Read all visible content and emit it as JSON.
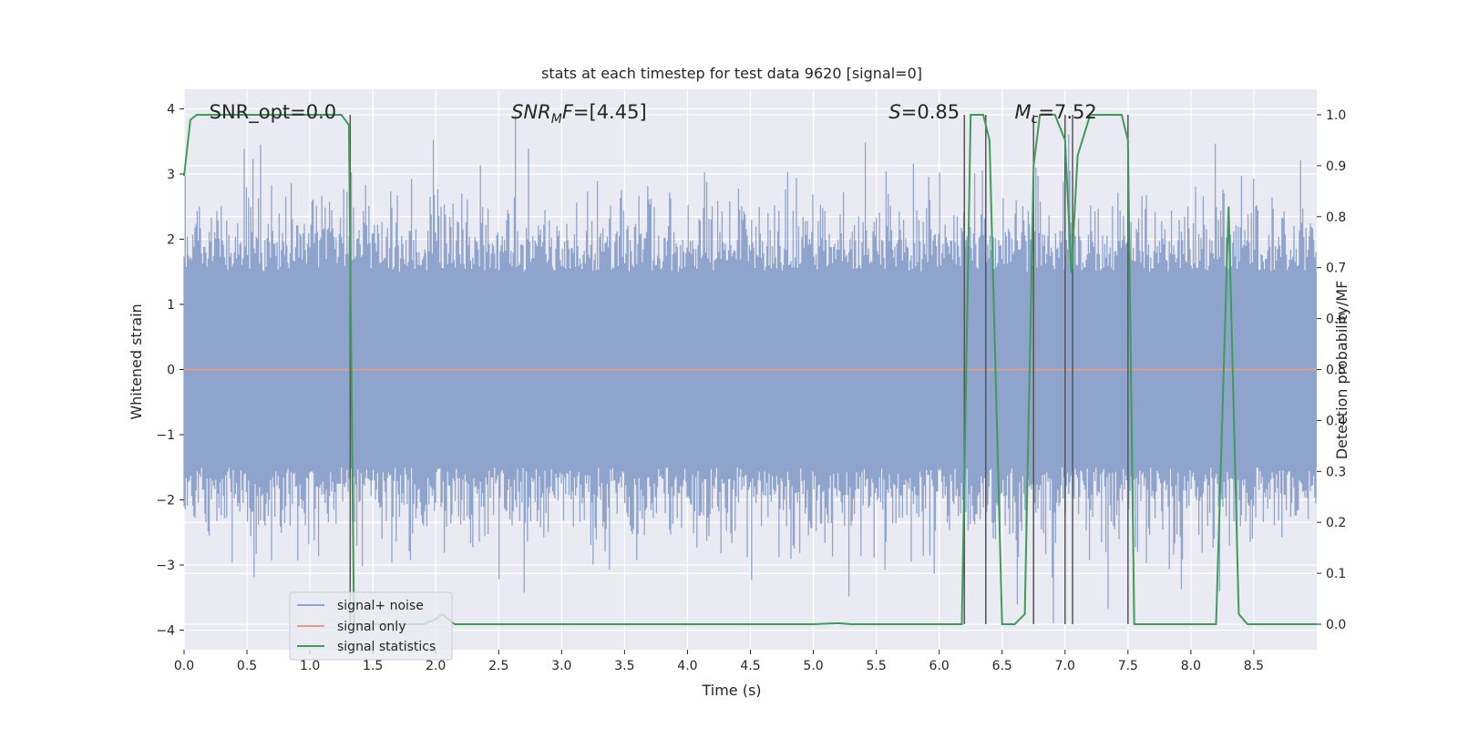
{
  "chart_data": {
    "type": "line",
    "title": "stats at each timestep for test data 9620 [signal=0]",
    "xlabel": "Time (s)",
    "ylabel": "Whitened strain",
    "ylabel_right": "Detection probability/MF",
    "xlim": [
      0,
      9.0
    ],
    "ylim": [
      -4.3,
      4.3
    ],
    "ylim_right": [
      -0.05,
      1.05
    ],
    "x_ticks": [
      0.0,
      0.5,
      1.0,
      1.5,
      2.0,
      2.5,
      3.0,
      3.5,
      4.0,
      4.5,
      5.0,
      5.5,
      6.0,
      6.5,
      7.0,
      7.5,
      8.0,
      8.5
    ],
    "x_tick_labels": [
      "0.0",
      "0.5",
      "1.0",
      "1.5",
      "2.0",
      "2.5",
      "3.0",
      "3.5",
      "4.0",
      "4.5",
      "5.0",
      "5.5",
      "6.0",
      "6.5",
      "7.0",
      "7.5",
      "8.0",
      "8.5"
    ],
    "y_ticks": [
      -4,
      -3,
      -2,
      -1,
      0,
      1,
      2,
      3,
      4
    ],
    "y_tick_labels": [
      "−4",
      "−3",
      "−2",
      "−1",
      "0",
      "1",
      "2",
      "3",
      "4"
    ],
    "y_ticks_right": [
      0.0,
      0.1,
      0.2,
      0.3,
      0.4,
      0.5,
      0.6,
      0.7,
      0.8,
      0.9,
      1.0
    ],
    "y_tick_labels_right": [
      "0.0",
      "0.1",
      "0.2",
      "0.3",
      "0.4",
      "0.5",
      "0.6",
      "0.7",
      "0.8",
      "0.9",
      "1.0"
    ],
    "grid": true,
    "legend_position": "lower-left",
    "annotations": [
      {
        "text": "SNR_opt=0.0",
        "x": 0.2,
        "y": 3.95
      },
      {
        "text_parts": [
          {
            "t": "SNR",
            "italic": true
          },
          {
            "t": "M",
            "italic": true,
            "sub": true
          },
          {
            "t": "F",
            "italic": true
          },
          {
            "t": "=[4.45]",
            "italic": false
          }
        ],
        "x": 2.6,
        "y": 3.95
      },
      {
        "text_parts": [
          {
            "t": "S",
            "italic": true
          },
          {
            "t": "=0.85",
            "italic": false
          }
        ],
        "x": 5.6,
        "y": 3.95
      },
      {
        "text_parts": [
          {
            "t": "M",
            "italic": true
          },
          {
            "t": "c",
            "italic": true,
            "sub": true
          },
          {
            "t": "=7.52",
            "italic": false
          }
        ],
        "x": 6.6,
        "y": 3.95
      }
    ],
    "series": [
      {
        "name": "signal+ noise",
        "color": "#8fa4cc",
        "kind": "noise",
        "x_range": [
          0,
          9.0
        ],
        "core_amplitude": 1.5,
        "peak_max": 3.9,
        "peak_min": -3.9
      },
      {
        "name": "signal only",
        "color": "#dd9f83",
        "kind": "line",
        "x": [
          0,
          9.0
        ],
        "y": [
          0,
          0
        ]
      },
      {
        "name": "signal statistics",
        "color": "#3e9c57",
        "kind": "line",
        "axis": "right",
        "x": [
          0.0,
          0.05,
          0.1,
          0.3,
          0.6,
          0.9,
          1.2,
          1.25,
          1.31,
          1.35,
          1.4,
          1.6,
          1.9,
          2.0,
          2.05,
          2.15,
          2.5,
          3.0,
          4.0,
          5.0,
          5.2,
          5.3,
          6.0,
          6.18,
          6.25,
          6.35,
          6.4,
          6.5,
          6.6,
          6.68,
          6.75,
          6.8,
          6.92,
          7.0,
          7.05,
          7.1,
          7.2,
          7.3,
          7.45,
          7.5,
          7.55,
          7.7,
          8.0,
          8.2,
          8.3,
          8.38,
          8.45,
          9.0
        ],
        "y": [
          0.88,
          0.99,
          1.0,
          1.0,
          1.0,
          1.0,
          1.0,
          1.0,
          0.98,
          0.0,
          0.0,
          0.0,
          0.0,
          0.01,
          0.02,
          0.0,
          0.0,
          0.0,
          0.0,
          0.0,
          0.002,
          0.0,
          0.0,
          0.0,
          1.0,
          1.0,
          0.95,
          0.0,
          0.0,
          0.02,
          0.9,
          1.0,
          1.0,
          0.95,
          0.69,
          0.92,
          1.0,
          1.0,
          1.0,
          0.95,
          0.0,
          0.0,
          0.0,
          0.0,
          0.82,
          0.02,
          0.0,
          0.0
        ]
      }
    ],
    "vertical_lines": [
      1.32,
      6.2,
      6.37,
      6.75,
      7.0,
      7.06,
      7.5
    ]
  }
}
